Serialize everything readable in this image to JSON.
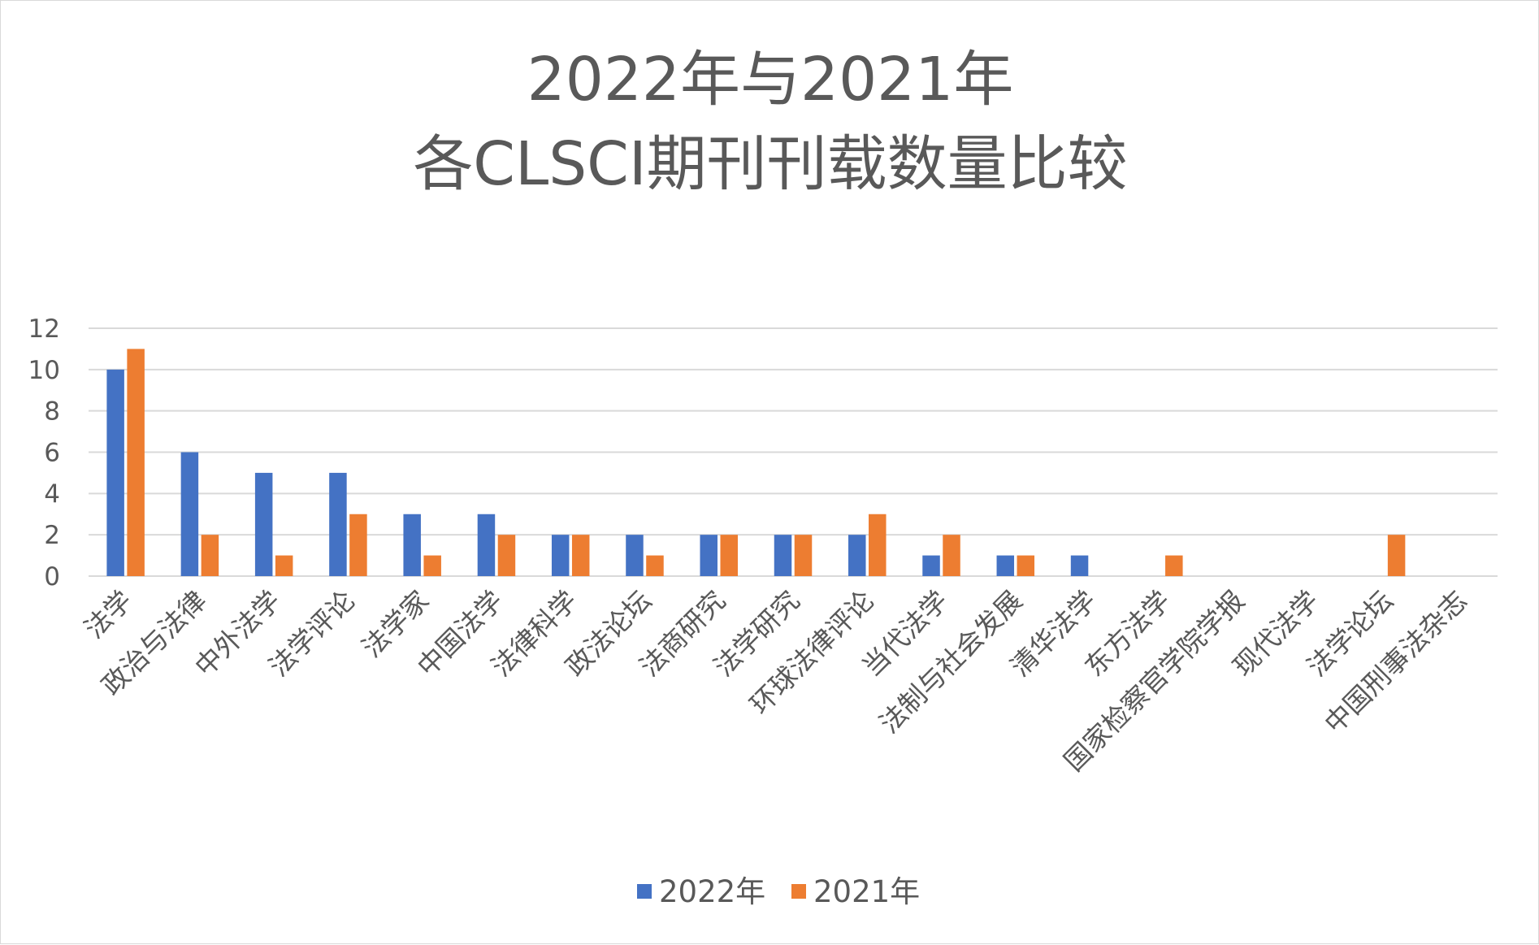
{
  "chart_data": {
    "type": "bar",
    "title": [
      "2022年与2021年",
      "各CLSCI期刊刊载数量比较"
    ],
    "xlabel": "",
    "ylabel": "",
    "ylim": [
      0,
      12
    ],
    "yticks": [
      0,
      2,
      4,
      6,
      8,
      10,
      12
    ],
    "grid": true,
    "legend_position": "bottom",
    "categories": [
      "法学",
      "政治与法律",
      "中外法学",
      "法学评论",
      "法学家",
      "中国法学",
      "法律科学",
      "政法论坛",
      "法商研究",
      "法学研究",
      "环球法律评论",
      "当代法学",
      "法制与社会发展",
      "清华法学",
      "东方法学",
      "国家检察官学院学报",
      "现代法学",
      "法学论坛",
      "中国刑事法杂志"
    ],
    "series": [
      {
        "name": "2022年",
        "color": "#4472c4",
        "values": [
          10,
          6,
          5,
          5,
          3,
          3,
          2,
          2,
          2,
          2,
          2,
          1,
          1,
          1,
          0,
          0,
          0,
          0,
          0
        ]
      },
      {
        "name": "2021年",
        "color": "#ed7d31",
        "values": [
          11,
          2,
          1,
          3,
          1,
          2,
          2,
          1,
          2,
          2,
          3,
          2,
          1,
          0,
          1,
          0,
          0,
          2,
          0
        ]
      }
    ]
  },
  "colors": {
    "gridline": "#d9d9d9",
    "text": "#595959"
  }
}
